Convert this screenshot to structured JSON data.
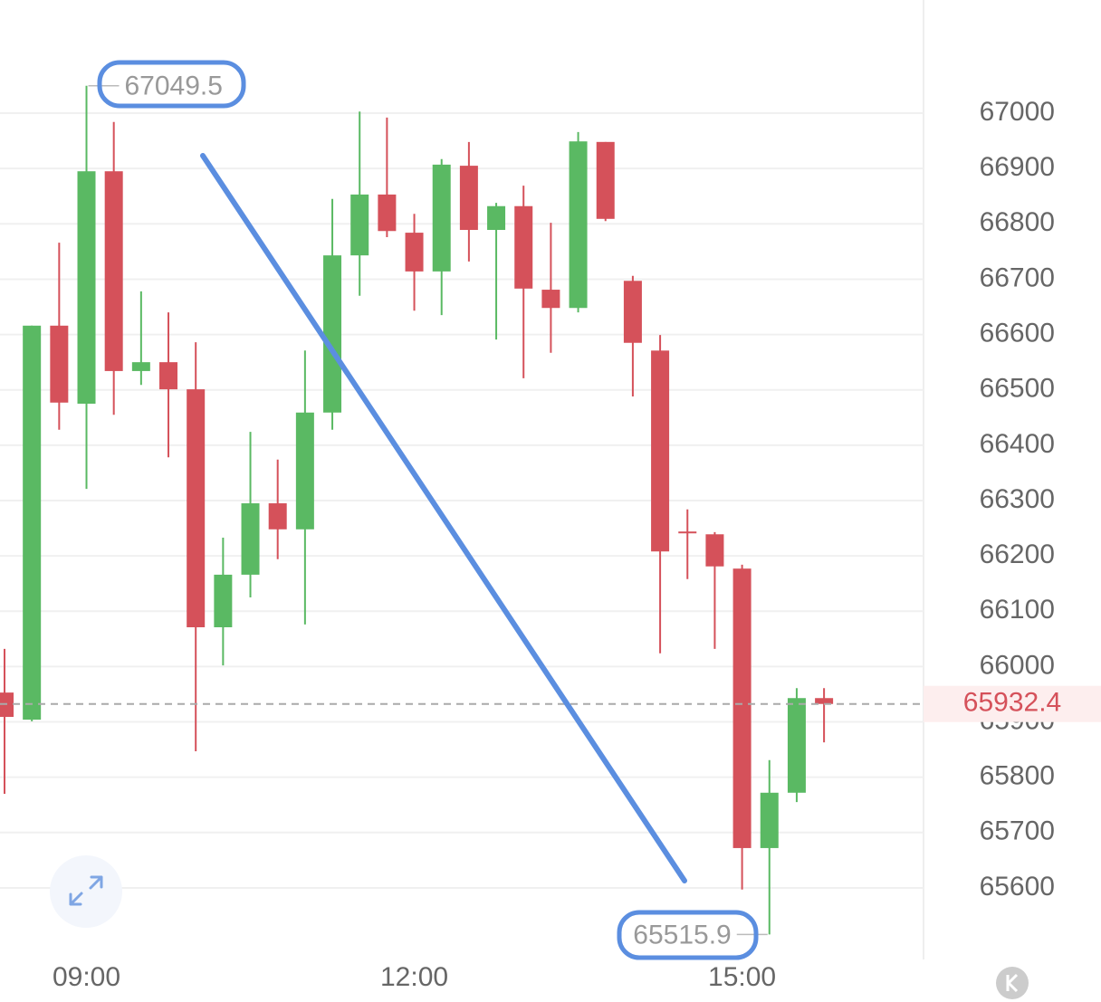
{
  "chart_data": {
    "type": "candlestick",
    "categories": [
      null,
      null,
      null,
      "09:00",
      null,
      null,
      null,
      null,
      null,
      null,
      null,
      null,
      null,
      null,
      null,
      "12:00",
      null,
      null,
      null,
      null,
      null,
      null,
      null,
      null,
      null,
      null,
      null,
      "15:00",
      null,
      null,
      null
    ],
    "open": [
      65953,
      65904,
      66616,
      66475,
      66895,
      66534,
      66550,
      66501,
      66071,
      66166,
      66295,
      66248,
      66459,
      66743,
      66853,
      66784,
      66714,
      66905,
      66789,
      66832,
      66681,
      66648,
      66948,
      66697,
      66571,
      66244,
      66239,
      66177,
      65672,
      65772,
      65943
    ],
    "high": [
      66032,
      66616,
      66766,
      67049.5,
      66984,
      66678,
      66640,
      66586,
      66233,
      66424,
      66374,
      66571,
      66845,
      67003,
      66992,
      66818,
      66917,
      66948,
      66838,
      66869,
      66802,
      66966,
      66948,
      66706,
      66599,
      66284,
      66243,
      66184,
      65831,
      65961,
      65961
    ],
    "low": [
      65770,
      65901,
      66428,
      66321,
      66455,
      66509,
      66378,
      65847,
      66002,
      66125,
      66194,
      66076,
      66428,
      66670,
      66776,
      66643,
      66635,
      66732,
      66591,
      66521,
      66567,
      66640,
      66805,
      66488,
      66024,
      66158,
      66032,
      65597,
      65515.9,
      65755,
      65863
    ],
    "close": [
      65909,
      66616,
      66477,
      66895,
      66534,
      66550,
      66501,
      66071,
      66166,
      66295,
      66248,
      66459,
      66743,
      66853,
      66787,
      66714,
      66907,
      66789,
      66832,
      66683,
      66648,
      66949,
      66809,
      66585,
      66208,
      66241,
      66181,
      65672,
      65772,
      65943,
      65932.4
    ],
    "up_color": "#5ab963",
    "down_color": "#d5515a",
    "ylim": [
      65470.7,
      67204.5
    ],
    "yticks": [
      65600,
      65700,
      65800,
      65900,
      66000,
      66100,
      66200,
      66300,
      66400,
      66500,
      66600,
      66700,
      66800,
      66900,
      67000
    ],
    "grid": true
  }
}
